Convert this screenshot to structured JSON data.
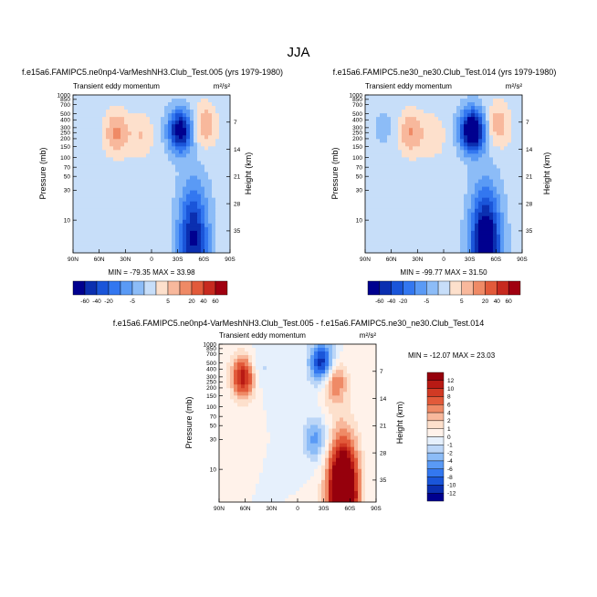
{
  "figure": {
    "title": "JJA"
  },
  "palettes": {
    "abs": [
      "#00008f",
      "#0b2fb0",
      "#1a55d9",
      "#3377f0",
      "#5a9af5",
      "#8cbcf7",
      "#c7def9",
      "#fde0cc",
      "#f8b89c",
      "#ef8a66",
      "#e25a3a",
      "#c72a1f",
      "#a00010"
    ],
    "diff": [
      "#00008f",
      "#0b2fb0",
      "#1a55d9",
      "#3377f0",
      "#5a9af5",
      "#8cbcf7",
      "#bcd6f7",
      "#e6f0fc",
      "#fff2ea",
      "#fde0cc",
      "#f8b89c",
      "#ef8a66",
      "#e25a3a",
      "#d13a24",
      "#b81a14",
      "#96000c"
    ]
  },
  "chart_data": [
    {
      "type": "heatmap",
      "title": "f.e15a6.FAMIPC5.ne0np4-VarMeshNH3.Club_Test.005 (yrs 1979-1980)",
      "subtitle": "Transient eddy momentum",
      "units_text": "m²/s²",
      "xlabel": "",
      "ylabel": "Pressure (mb)",
      "ylabel_right": "Height (km)",
      "x_ticks": [
        "90N",
        "60N",
        "30N",
        "0",
        "30S",
        "60S",
        "90S"
      ],
      "x_range": [
        90,
        -90
      ],
      "y_ticks": [
        "10",
        "30",
        "50",
        "70",
        "100",
        "150",
        "200",
        "250",
        "300",
        "400",
        "500",
        "700",
        "850",
        "1000"
      ],
      "y_range_mb": [
        1000,
        3
      ],
      "y_right_ticks": [
        "7",
        "14",
        "21",
        "28",
        "35"
      ],
      "log_scale_y": true,
      "stats_text": "MIN = -79.35  MAX = 33.98",
      "colorbar": {
        "orientation": "horizontal",
        "labels": [
          "-60",
          "-40",
          "-20",
          "-5",
          "5",
          "20",
          "40",
          "60"
        ]
      },
      "features": [
        {
          "type": "negative_core",
          "lat": -33,
          "p_mb": 270,
          "amplitude": -79.35
        },
        {
          "type": "negative_jet_upper",
          "lat": -48,
          "p_mb": 5,
          "amplitude": -70
        },
        {
          "type": "positive_lobe",
          "lat": 40,
          "p_mb": 250,
          "amplitude": 33.98
        },
        {
          "type": "positive_lobe",
          "lat": 12,
          "p_mb": 220,
          "amplitude": 18
        },
        {
          "type": "positive_lobe",
          "lat": -60,
          "p_mb": 330,
          "amplitude": 30
        }
      ]
    },
    {
      "type": "heatmap",
      "title": "f.e15a6.FAMIPC5.ne30_ne30.Club_Test.014 (yrs 1979-1980)",
      "subtitle": "Transient eddy momentum",
      "units_text": "m²/s²",
      "xlabel": "",
      "ylabel": "Pressure (mb)",
      "ylabel_right": "Height (km)",
      "x_ticks": [
        "90N",
        "60N",
        "30N",
        "0",
        "30S",
        "60S",
        "90S"
      ],
      "x_range": [
        90,
        -90
      ],
      "y_ticks": [
        "10",
        "30",
        "50",
        "70",
        "100",
        "150",
        "200",
        "250",
        "300",
        "400",
        "500",
        "700",
        "850",
        "1000"
      ],
      "y_range_mb": [
        1000,
        3
      ],
      "y_right_ticks": [
        "7",
        "14",
        "21",
        "28",
        "35"
      ],
      "log_scale_y": true,
      "stats_text": "MIN = -99.77  MAX = 31.50",
      "colorbar": {
        "orientation": "horizontal",
        "labels": [
          "-60",
          "-40",
          "-20",
          "-5",
          "5",
          "20",
          "40",
          "60"
        ]
      },
      "features": [
        {
          "type": "negative_core",
          "lat": -33,
          "p_mb": 270,
          "amplitude": -99.77
        },
        {
          "type": "negative_jet_upper",
          "lat": -48,
          "p_mb": 4,
          "amplitude": -95
        },
        {
          "type": "positive_lobe",
          "lat": 38,
          "p_mb": 250,
          "amplitude": 31.5
        },
        {
          "type": "positive_lobe",
          "lat": 12,
          "p_mb": 220,
          "amplitude": 15
        },
        {
          "type": "positive_lobe",
          "lat": -62,
          "p_mb": 330,
          "amplitude": 28
        },
        {
          "type": "negative_lobe",
          "lat": 68,
          "p_mb": 300,
          "amplitude": -10
        }
      ]
    },
    {
      "type": "heatmap",
      "title": "f.e15a6.FAMIPC5.ne0np4-VarMeshNH3.Club_Test.005 - f.e15a6.FAMIPC5.ne30_ne30.Club_Test.014",
      "subtitle": "Transient eddy momentum",
      "units_text": "m²/s²",
      "xlabel": "",
      "ylabel": "Pressure (mb)",
      "ylabel_right": "Height (km)",
      "x_ticks": [
        "90N",
        "60N",
        "30N",
        "0",
        "30S",
        "60S",
        "90S"
      ],
      "x_range": [
        90,
        -90
      ],
      "y_ticks": [
        "10",
        "30",
        "50",
        "70",
        "100",
        "150",
        "200",
        "250",
        "300",
        "400",
        "500",
        "700",
        "850",
        "1000"
      ],
      "y_range_mb": [
        1000,
        3
      ],
      "y_right_ticks": [
        "7",
        "14",
        "21",
        "28",
        "35"
      ],
      "log_scale_y": true,
      "stats_text": "MIN = -12.07  MAX = 23.03",
      "colorbar": {
        "orientation": "vertical",
        "labels": [
          "12",
          "10",
          "8",
          "6",
          "4",
          "2",
          "1",
          "0",
          "-1",
          "-2",
          "-4",
          "-6",
          "-8",
          "-10",
          "-12"
        ]
      },
      "features": [
        {
          "type": "positive_core",
          "lat": -52,
          "p_mb": 4,
          "amplitude": 23.03
        },
        {
          "type": "positive_lobe",
          "lat": 62,
          "p_mb": 300,
          "amplitude": 12
        },
        {
          "type": "positive_lobe",
          "lat": -42,
          "p_mb": 250,
          "amplitude": 8
        },
        {
          "type": "negative_lobe",
          "lat": -20,
          "p_mb": 30,
          "amplitude": -6
        },
        {
          "type": "negative_lobe",
          "lat": -28,
          "p_mb": 500,
          "amplitude": -12.07
        },
        {
          "type": "negative_lobe",
          "lat": 45,
          "p_mb": 400,
          "amplitude": -3
        }
      ]
    }
  ]
}
